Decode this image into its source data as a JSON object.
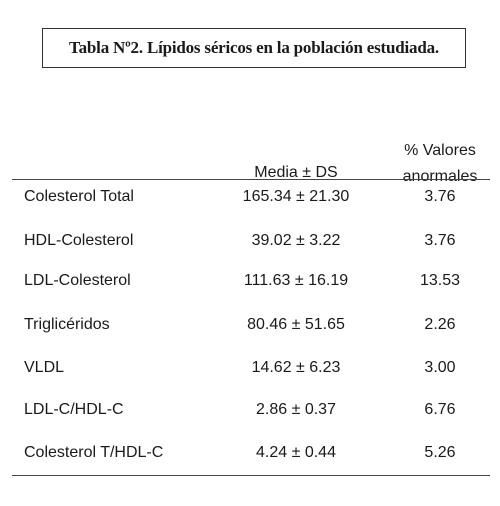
{
  "table": {
    "title": "Tabla Nº2. Lípidos séricos en la población estudiada.",
    "headers": [
      "",
      "Media ± DS",
      "% Valores anormales"
    ],
    "rows": [
      [
        "Colesterol Total",
        "165.34 ± 21.30",
        "3.76"
      ],
      [
        "HDL-Colesterol",
        "39.02 ± 3.22",
        "3.76"
      ],
      [
        "LDL-Colesterol",
        "111.63 ± 16.19",
        "13.53"
      ],
      [
        "Triglicéridos",
        "80.46 ± 51.65",
        "2.26"
      ],
      [
        "VLDL",
        "14.62 ± 6.23",
        "3.00"
      ],
      [
        "LDL-C/HDL-C",
        "2.86 ± 0.37",
        "6.76"
      ],
      [
        "Colesterol T/HDL-C",
        "4.24 ± 0.44",
        "5.26"
      ]
    ]
  }
}
